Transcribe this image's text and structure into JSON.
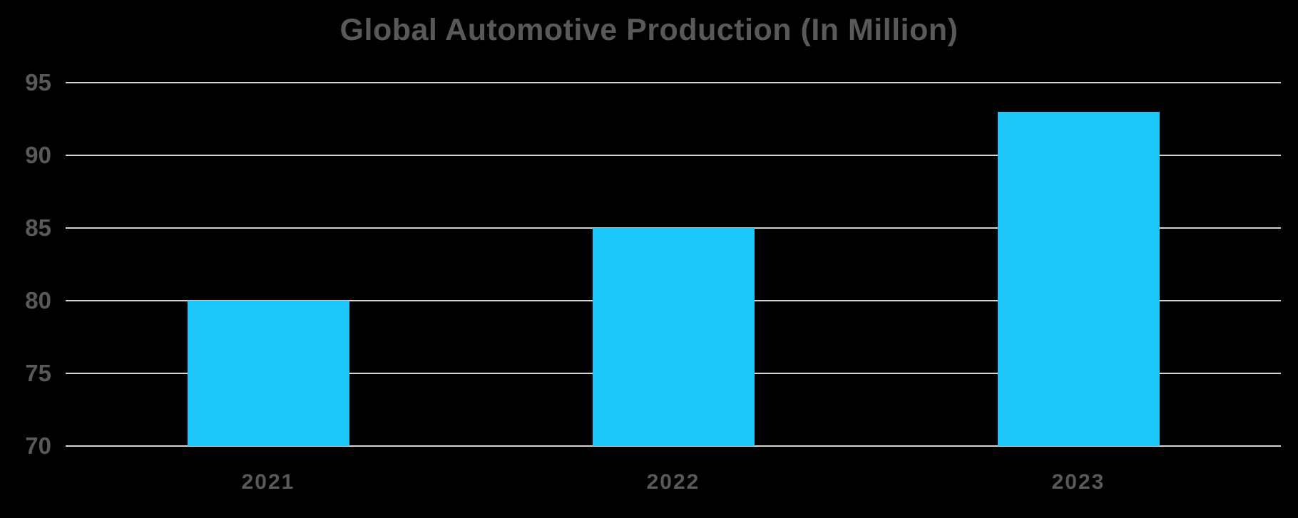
{
  "page": {
    "background_color": "#000000"
  },
  "chart_data": {
    "type": "bar",
    "title": "Global Automotive Production (In Million)",
    "categories": [
      "2021",
      "2022",
      "2023"
    ],
    "values": [
      80,
      85,
      93
    ],
    "xlabel": "",
    "ylabel": "",
    "ylim": [
      70,
      95
    ],
    "yticks": [
      70,
      75,
      80,
      85,
      90,
      95
    ],
    "grid": true,
    "legend": "none",
    "bar_color": "#1EC7F9",
    "grid_color": "#D5D3D3",
    "text_color": "#595959",
    "background_color": "#000000"
  }
}
